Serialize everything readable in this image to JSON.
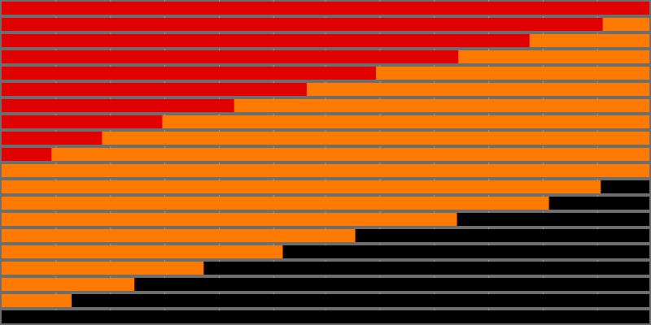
{
  "chart_data": {
    "type": "bar",
    "orientation": "horizontal",
    "stacked": true,
    "xlim": [
      0,
      1
    ],
    "grid": true,
    "title": "",
    "xlabel": "",
    "ylabel": "",
    "background_color": "#6e6e6e",
    "series": [
      {
        "color": "#e00000",
        "values": [
          1.0,
          0.928,
          0.815,
          0.705,
          0.578,
          0.471,
          0.359,
          0.248,
          0.155,
          0.077,
          0,
          0,
          0,
          0,
          0,
          0,
          0,
          0,
          0,
          0
        ]
      },
      {
        "color": "#ff7a00",
        "values": [
          0,
          0.072,
          0.185,
          0.295,
          0.422,
          0.529,
          0.641,
          0.752,
          0.845,
          0.923,
          1.0,
          0.925,
          0.845,
          0.703,
          0.546,
          0.434,
          0.312,
          0.205,
          0.108,
          0
        ]
      },
      {
        "color": "#000000",
        "values": [
          0,
          0,
          0,
          0,
          0,
          0,
          0,
          0,
          0,
          0,
          0,
          0.075,
          0.155,
          0.297,
          0.454,
          0.566,
          0.688,
          0.795,
          0.892,
          1.0
        ]
      }
    ]
  }
}
